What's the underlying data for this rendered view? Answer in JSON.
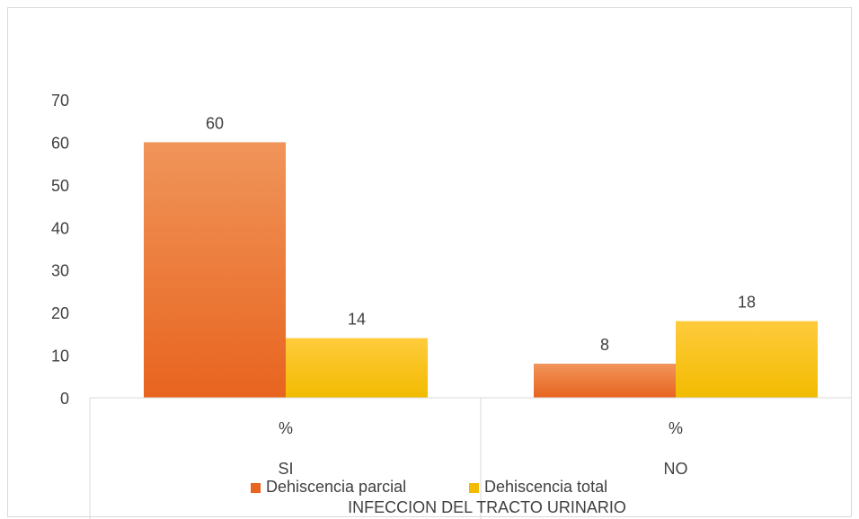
{
  "chart_data": {
    "type": "bar",
    "groups": [
      {
        "top_label": "%",
        "bottom_label": "SI"
      },
      {
        "top_label": "%",
        "bottom_label": "NO"
      }
    ],
    "series": [
      {
        "name": "Dehiscencia parcial",
        "values": [
          60,
          8
        ]
      },
      {
        "name": "Dehiscencia total",
        "values": [
          14,
          18
        ]
      }
    ],
    "ylim": [
      0,
      70
    ],
    "yticks": [
      0,
      10,
      20,
      30,
      40,
      50,
      60,
      70
    ],
    "xlabel": "INFECCION DEL TRACTO URINARIO",
    "legend_position": "bottom",
    "colors": {
      "parcial_top": "#f0955a",
      "parcial_bottom": "#e8641f",
      "total_top": "#ffcb3c",
      "total_bottom": "#f2bb00",
      "axis": "#d9d9d9"
    },
    "grid": false
  }
}
